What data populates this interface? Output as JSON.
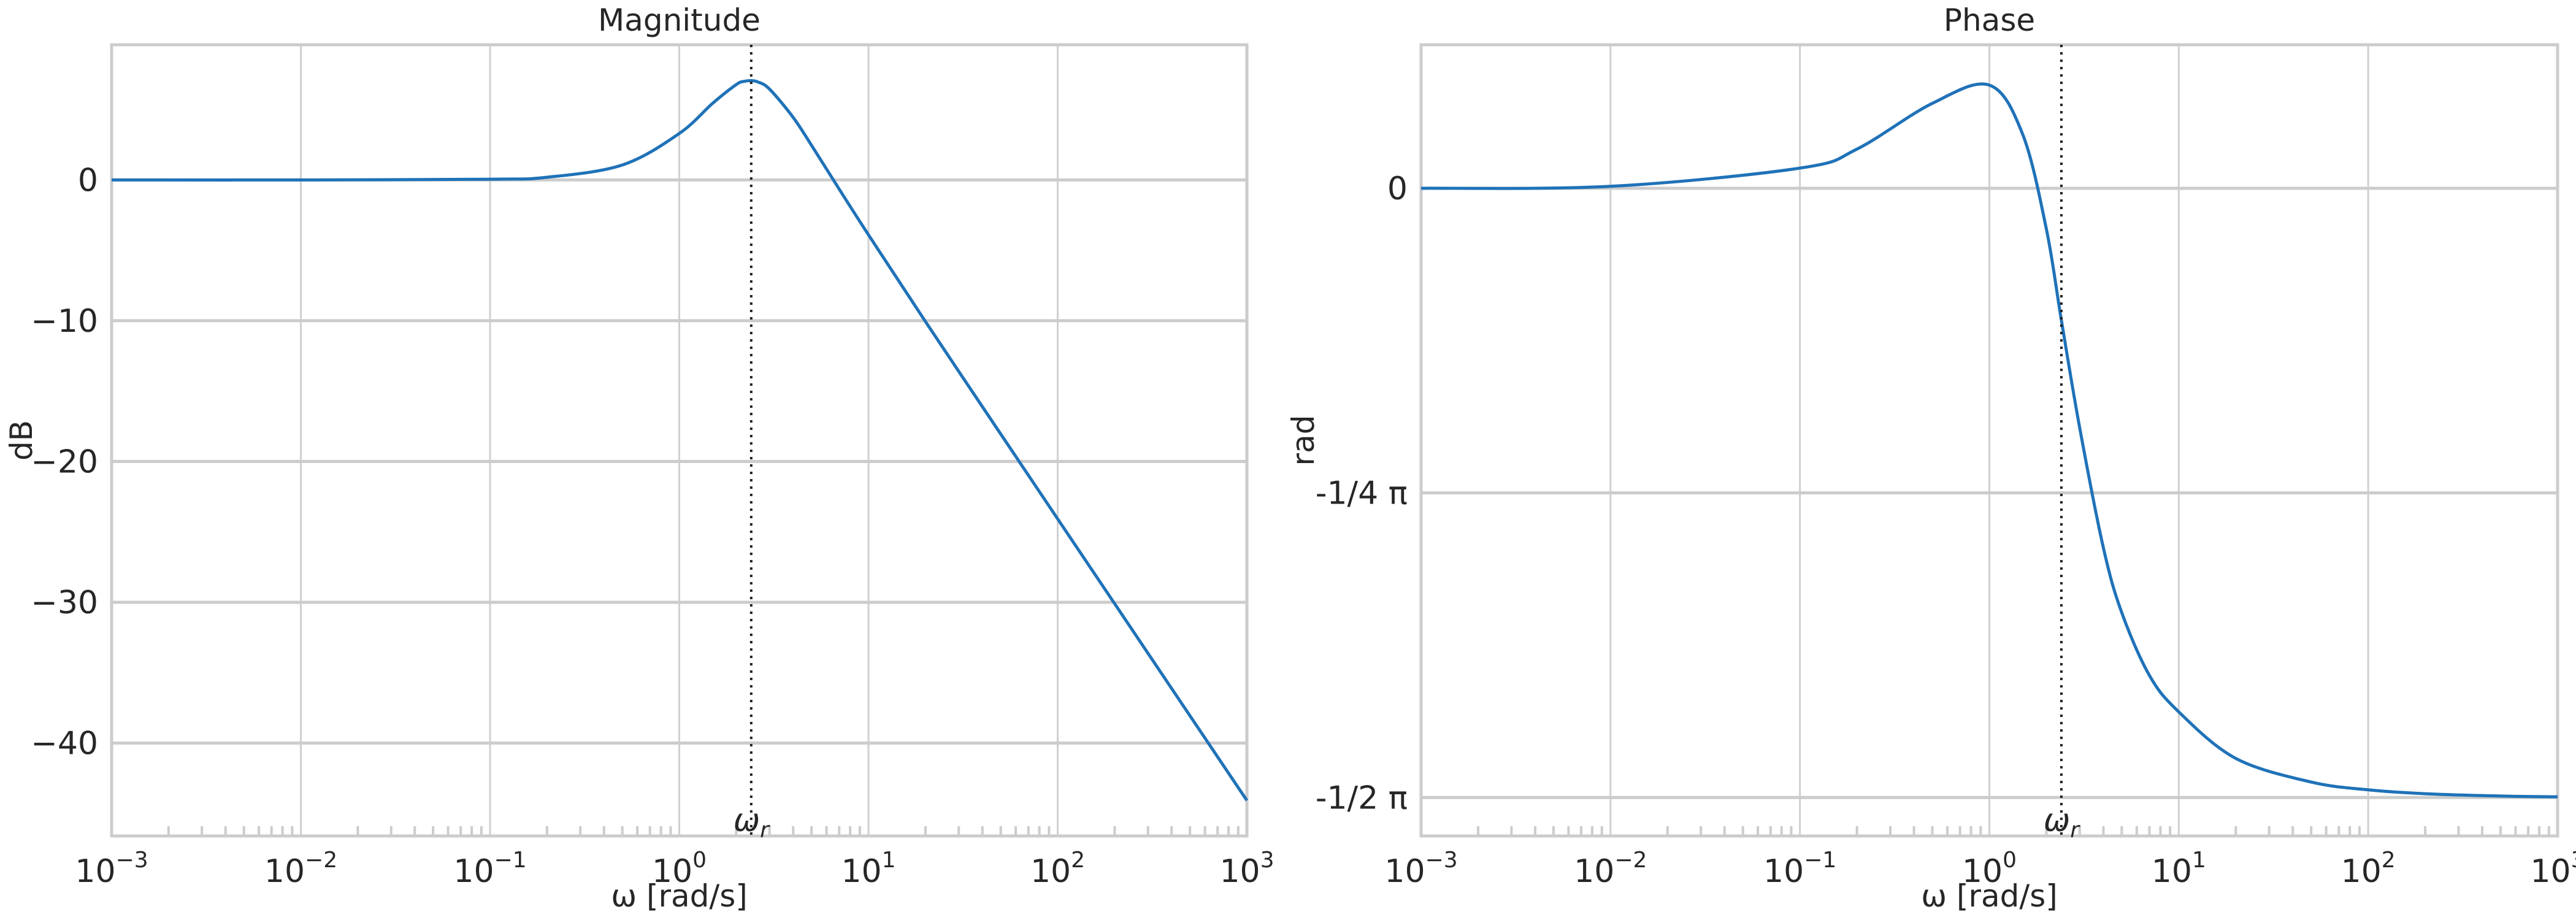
{
  "chart_data": [
    {
      "type": "line",
      "title": "Magnitude",
      "xlabel": "ω [rad/s]",
      "ylabel": "dB",
      "xscale": "log",
      "xlim": [
        0.001,
        1000
      ],
      "ylim": [
        -46.6,
        9.6
      ],
      "grid": true,
      "line_color": "#1f72b8",
      "x_ticks": [
        {
          "base": "10",
          "exp": "−3",
          "value": 0.001
        },
        {
          "base": "10",
          "exp": "−2",
          "value": 0.01
        },
        {
          "base": "10",
          "exp": "−1",
          "value": 0.1
        },
        {
          "base": "10",
          "exp": "0",
          "value": 1
        },
        {
          "base": "10",
          "exp": "1",
          "value": 10
        },
        {
          "base": "10",
          "exp": "2",
          "value": 100
        },
        {
          "base": "10",
          "exp": "3",
          "value": 1000
        }
      ],
      "y_ticks": [
        {
          "label": "0",
          "value": 0
        },
        {
          "label": "−10",
          "value": -10
        },
        {
          "label": "−20",
          "value": -20
        },
        {
          "label": "−30",
          "value": -30
        },
        {
          "label": "−40",
          "value": -40
        }
      ],
      "annotation": {
        "symbol": "ω",
        "subscript": "r",
        "x": 2.4
      },
      "x": [
        0.001,
        0.01,
        0.1,
        0.2,
        0.5,
        1,
        1.5,
        2,
        2.2,
        2.4,
        2.6,
        3,
        4,
        5,
        7,
        10,
        20,
        50,
        100,
        200,
        500,
        1000
      ],
      "y": [
        0,
        0,
        0.05,
        0.19,
        1.06,
        3.3,
        5.44,
        6.77,
        7.0,
        7.05,
        6.96,
        6.45,
        4.44,
        2.46,
        -0.65,
        -3.9,
        -10.06,
        -18.05,
        -24.08,
        -30.1,
        -38.06,
        -44.08
      ]
    },
    {
      "type": "line",
      "title": "Phase",
      "xlabel": "ω [rad/s]",
      "ylabel": "rad",
      "xscale": "log",
      "xlim": [
        0.001,
        1000
      ],
      "ylim": [
        -1.67,
        0.37
      ],
      "grid": true,
      "line_color": "#1f72b8",
      "x_ticks": [
        {
          "base": "10",
          "exp": "−3",
          "value": 0.001
        },
        {
          "base": "10",
          "exp": "−2",
          "value": 0.01
        },
        {
          "base": "10",
          "exp": "−1",
          "value": 0.1
        },
        {
          "base": "10",
          "exp": "0",
          "value": 1
        },
        {
          "base": "10",
          "exp": "1",
          "value": 10
        },
        {
          "base": "10",
          "exp": "2",
          "value": 100
        },
        {
          "base": "10",
          "exp": "3",
          "value": 1000
        }
      ],
      "y_ticks": [
        {
          "label": "0",
          "value": 0
        },
        {
          "label": "-1/4 π",
          "value": -0.7854
        },
        {
          "label": "-1/2 π",
          "value": -1.5708
        }
      ],
      "annotation": {
        "symbol": "ω",
        "subscript": "r",
        "x": 2.4
      },
      "x": [
        0.001,
        0.01,
        0.1,
        0.2,
        0.5,
        1,
        1.5,
        2,
        2.4,
        3,
        4,
        5,
        7,
        10,
        20,
        50,
        100,
        200,
        500,
        1000
      ],
      "y": [
        0,
        0.005,
        0.052,
        0.101,
        0.219,
        0.266,
        0.139,
        -0.105,
        -0.34,
        -0.618,
        -0.927,
        -1.094,
        -1.256,
        -1.35,
        -1.47,
        -1.531,
        -1.551,
        -1.561,
        -1.567,
        -1.569
      ]
    }
  ]
}
